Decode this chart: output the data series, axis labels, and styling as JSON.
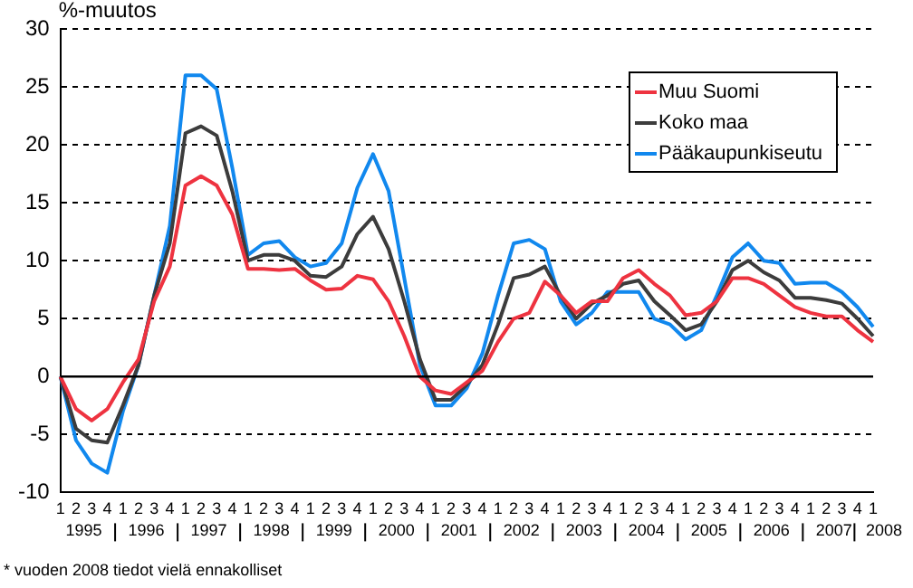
{
  "chart_data": {
    "type": "line",
    "ylabel": "%-muutos",
    "categories": [
      "1",
      "2",
      "3",
      "4",
      "1",
      "2",
      "3",
      "4",
      "1",
      "2",
      "3",
      "4",
      "1",
      "2",
      "3",
      "4",
      "1",
      "2",
      "3",
      "4",
      "1",
      "2",
      "3",
      "4",
      "1",
      "2",
      "3",
      "4",
      "1",
      "2",
      "3",
      "4",
      "1",
      "2",
      "3",
      "4",
      "1",
      "2",
      "3",
      "4",
      "1",
      "2",
      "3",
      "4",
      "1",
      "2",
      "3",
      "4",
      "1",
      "2",
      "3",
      "4",
      "1"
    ],
    "series": [
      {
        "name": "Muu Suomi",
        "color": "#ee3340",
        "values": [
          0,
          -2.8,
          -3.8,
          -2.8,
          -0.5,
          1.5,
          6.5,
          9.5,
          16.5,
          17.3,
          16.5,
          14,
          9.3,
          9.3,
          9.2,
          9.3,
          8.3,
          7.5,
          7.6,
          8.7,
          8.4,
          6.5,
          3.5,
          0,
          -1.2,
          -1.5,
          -0.5,
          0.5,
          3,
          5,
          5.5,
          8.2,
          7,
          5.5,
          6.5,
          6.5,
          8.5,
          9.2,
          8,
          7,
          5.3,
          5.5,
          6.5,
          8.5,
          8.5,
          8,
          7,
          6,
          5.5,
          5.2,
          5.2,
          4,
          3
        ]
      },
      {
        "name": "Koko maa",
        "color": "#3c3c3c",
        "values": [
          0,
          -4.5,
          -5.5,
          -5.7,
          -2.5,
          1,
          7,
          11.5,
          21,
          21.6,
          20.8,
          16,
          10,
          10.5,
          10.5,
          10,
          8.7,
          8.6,
          9.5,
          12.3,
          13.8,
          11,
          6.5,
          1.5,
          -2,
          -2,
          -0.7,
          1,
          4.5,
          8.5,
          8.8,
          9.5,
          7,
          5,
          6.3,
          7,
          8,
          8.3,
          6.5,
          5.3,
          4,
          4.5,
          6.5,
          9.2,
          10,
          9,
          8.3,
          6.8,
          6.8,
          6.6,
          6.3,
          5,
          3.5
        ]
      },
      {
        "name": "Pääkaupunkiseutu",
        "color": "#1188ee",
        "values": [
          0,
          -5.5,
          -7.5,
          -8.3,
          -3,
          1,
          7,
          13,
          26,
          26,
          24.8,
          18,
          10.5,
          11.5,
          11.7,
          10.3,
          9.5,
          9.8,
          11.5,
          16.3,
          19.2,
          16,
          8.5,
          1,
          -2.5,
          -2.5,
          -1,
          2,
          7,
          11.5,
          11.8,
          11,
          6.5,
          4.5,
          5.5,
          7.3,
          7.3,
          7.3,
          5,
          4.5,
          3.2,
          4,
          7,
          10.3,
          11.5,
          10,
          9.8,
          8,
          8.1,
          8.1,
          7.3,
          6,
          4.3
        ]
      }
    ],
    "ylim": [
      -10,
      30
    ],
    "yticks": [
      -10,
      -5,
      0,
      5,
      10,
      15,
      20,
      25,
      30
    ],
    "grid": "y",
    "legend": "top right",
    "marker": "none",
    "line_style": "solid",
    "ref_lines": [
      {
        "axis": "y",
        "value": 0,
        "color": "#000000"
      }
    ],
    "annotations": [
      "1995",
      "1996",
      "1997",
      "1998",
      "1999",
      "2000",
      "2001",
      "2002",
      "2003",
      "2004",
      "2005",
      "2006",
      "2007",
      "2008",
      "* vuoden 2008 tiedot vielä ennakolliset"
    ]
  }
}
